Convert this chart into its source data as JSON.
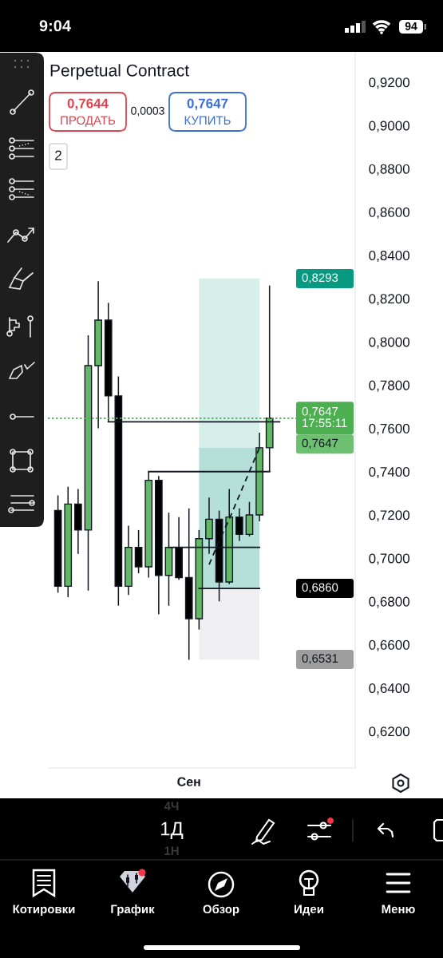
{
  "chart_data": {
    "type": "candlestick",
    "title": "Perpetual Contract",
    "categories": [
      null,
      null,
      null,
      null,
      null,
      null,
      null,
      null,
      null,
      null,
      null,
      null,
      null,
      "Сен",
      null,
      null,
      null,
      null,
      null,
      null,
      null,
      null,
      null,
      null,
      null,
      null,
      null,
      null,
      null,
      null
    ],
    "ohlc": [
      [
        0.722,
        0.729,
        0.684,
        0.687
      ],
      [
        0.687,
        0.733,
        0.682,
        0.725
      ],
      [
        0.725,
        0.732,
        0.702,
        0.713
      ],
      [
        0.713,
        0.803,
        0.685,
        0.789
      ],
      [
        0.789,
        0.828,
        0.76,
        0.81
      ],
      [
        0.81,
        0.818,
        0.763,
        0.775
      ],
      [
        0.775,
        0.784,
        0.678,
        0.687
      ],
      [
        0.687,
        0.715,
        0.683,
        0.705
      ],
      [
        0.705,
        0.713,
        0.693,
        0.696
      ],
      [
        0.696,
        0.74,
        0.691,
        0.736
      ],
      [
        0.736,
        0.738,
        0.674,
        0.692
      ],
      [
        0.692,
        0.721,
        0.678,
        0.705
      ],
      [
        0.705,
        0.719,
        0.69,
        0.691
      ],
      [
        0.691,
        0.723,
        0.653,
        0.672
      ],
      [
        0.672,
        0.713,
        0.667,
        0.709
      ],
      [
        0.709,
        0.728,
        0.702,
        0.718
      ],
      [
        0.718,
        0.722,
        0.68,
        0.689
      ],
      [
        0.689,
        0.732,
        0.688,
        0.719
      ],
      [
        0.719,
        0.723,
        0.708,
        0.711
      ],
      [
        0.711,
        0.726,
        0.71,
        0.72
      ],
      [
        0.72,
        0.758,
        0.717,
        0.751
      ],
      [
        0.751,
        0.826,
        0.74,
        0.7647
      ],
      null,
      null,
      null,
      null,
      null,
      null,
      null,
      null
    ],
    "colors": [
      "#000000",
      "#62b866",
      "#000000",
      "#62b866",
      "#62b866",
      "#000000",
      "#000000",
      "#62b866",
      "#000000",
      "#62b866",
      "#000000",
      "#62b866",
      "#000000",
      "#000000",
      "#62b866",
      "#62b866",
      "#000000",
      "#62b866",
      "#000000",
      "#62b866",
      "#62b866",
      "#62b866",
      null,
      null,
      null,
      null,
      null,
      null,
      null,
      null
    ],
    "series": [
      {
        "type": "line",
        "values": [
          null,
          null,
          null,
          null,
          null,
          0.763,
          0.763,
          0.763,
          0.763,
          0.763,
          0.763,
          0.763,
          0.763,
          0.763,
          0.763,
          0.763,
          0.763,
          0.763,
          0.763,
          0.763,
          0.763,
          0.763,
          0.763,
          null,
          null,
          null,
          null,
          null,
          null,
          null
        ],
        "color": "#131722"
      },
      {
        "type": "line",
        "values": [
          null,
          null,
          null,
          null,
          null,
          null,
          null,
          null,
          null,
          0.74,
          0.74,
          0.74,
          0.74,
          0.74,
          0.74,
          0.74,
          0.74,
          0.74,
          0.74,
          0.74,
          0.74,
          0.74,
          null,
          null,
          null,
          null,
          null,
          null,
          null,
          null
        ],
        "color": "#131722"
      },
      {
        "type": "line",
        "values": [
          null,
          null,
          null,
          null,
          null,
          null,
          null,
          null,
          null,
          null,
          null,
          0.705,
          0.705,
          0.705,
          0.705,
          0.705,
          0.705,
          0.705,
          0.705,
          0.705,
          0.705,
          null,
          null,
          null,
          null,
          null,
          null,
          null,
          null,
          null
        ],
        "color": "#131722"
      },
      {
        "type": "line",
        "values": [
          null,
          null,
          null,
          null,
          null,
          null,
          null,
          null,
          null,
          null,
          null,
          null,
          null,
          null,
          0.686,
          0.686,
          0.686,
          0.686,
          0.686,
          0.686,
          0.686,
          null,
          null,
          null,
          null,
          null,
          null,
          null,
          null,
          null
        ],
        "color": "#131722"
      },
      {
        "type": "line",
        "values": [
          null,
          null,
          null,
          null,
          null,
          null,
          null,
          null,
          null,
          null,
          null,
          null,
          null,
          null,
          null,
          0.697,
          0.708,
          0.718,
          0.729,
          0.74,
          0.751,
          null,
          null,
          null,
          null,
          null,
          null,
          null,
          null,
          null
        ],
        "color": "#131722",
        "line_style": "dashed"
      }
    ],
    "bands": [
      {
        "axis": "y",
        "from": 0.751,
        "to": 0.8293,
        "color": "#d7efeb"
      },
      {
        "axis": "y",
        "from": 0.686,
        "to": 0.751,
        "color": "#b4e0d9"
      },
      {
        "axis": "y",
        "from": 0.6531,
        "to": 0.686,
        "color": "#efeff1"
      }
    ],
    "ylim": [
      0.603,
      0.934
    ],
    "yticks": [
      {
        "value": 0.62,
        "label": "0,6200"
      },
      {
        "value": 0.64,
        "label": "0,6400"
      },
      {
        "value": 0.66,
        "label": "0,6600"
      },
      {
        "value": 0.68,
        "label": "0,6800"
      },
      {
        "value": 0.7,
        "label": "0,7000"
      },
      {
        "value": 0.72,
        "label": "0,7200"
      },
      {
        "value": 0.74,
        "label": "0,7400"
      },
      {
        "value": 0.76,
        "label": "0,7600"
      },
      {
        "value": 0.78,
        "label": "0,7800"
      },
      {
        "value": 0.8,
        "label": "0,8000"
      },
      {
        "value": 0.82,
        "label": "0,8200"
      },
      {
        "value": 0.84,
        "label": "0,8400"
      },
      {
        "value": 0.86,
        "label": "0,8600"
      },
      {
        "value": 0.88,
        "label": "0,8800"
      },
      {
        "value": 0.9,
        "label": "0,9000"
      },
      {
        "value": 0.92,
        "label": "0,9200"
      }
    ],
    "ref_lines": [
      {
        "axis": "y",
        "value": 0.7647,
        "label": "0,7647\n17:55:11",
        "color": "#4caf50",
        "line_style": "dotted"
      }
    ],
    "grid": false,
    "annotations": [
      "9:04",
      "94",
      "0,7644",
      "ПРОДАТЬ",
      "0,0003",
      "0,7647",
      "КУПИТЬ",
      "2",
      "1Д",
      "4Ч",
      "1Н",
      "Котировки",
      "График",
      "Обзор",
      "Идеи",
      "Меню",
      "0,8293",
      "0,7647",
      "0,6860",
      "0,6531"
    ]
  }
}
